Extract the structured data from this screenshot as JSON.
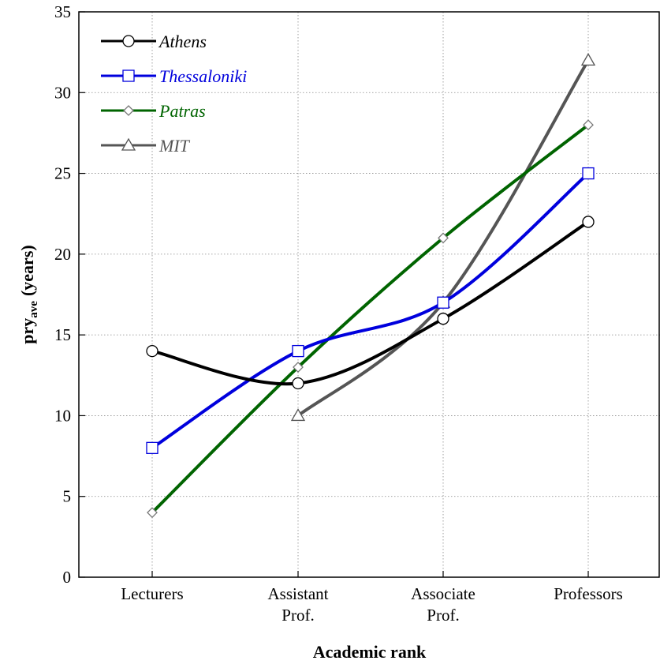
{
  "chart_data": {
    "type": "line",
    "title": "",
    "xlabel": "Academic rank",
    "ylabel": {
      "main": "pry",
      "subscript": "ave",
      "suffix": "(years)"
    },
    "categories": [
      [
        "Lecturers"
      ],
      [
        "Assistant",
        "Prof."
      ],
      [
        "Associate",
        "Prof."
      ],
      [
        "Professors"
      ]
    ],
    "ylim": [
      0,
      35
    ],
    "yticks": [
      0,
      5,
      10,
      15,
      20,
      25,
      30,
      35
    ],
    "grid": true,
    "legend_position": "top-left",
    "series": [
      {
        "name": "Athens",
        "color": "#000000",
        "marker": "circle",
        "values": [
          14,
          12,
          16,
          22
        ]
      },
      {
        "name": "Thessaloniki",
        "color": "#0000dd",
        "marker": "square",
        "values": [
          8,
          14,
          17,
          25
        ]
      },
      {
        "name": "Patras",
        "color": "#006400",
        "marker": "diamond",
        "values": [
          4,
          13,
          21,
          28
        ]
      },
      {
        "name": "MIT",
        "color": "#555555",
        "marker": "triangle",
        "values": [
          null,
          10,
          17,
          32
        ]
      }
    ]
  }
}
